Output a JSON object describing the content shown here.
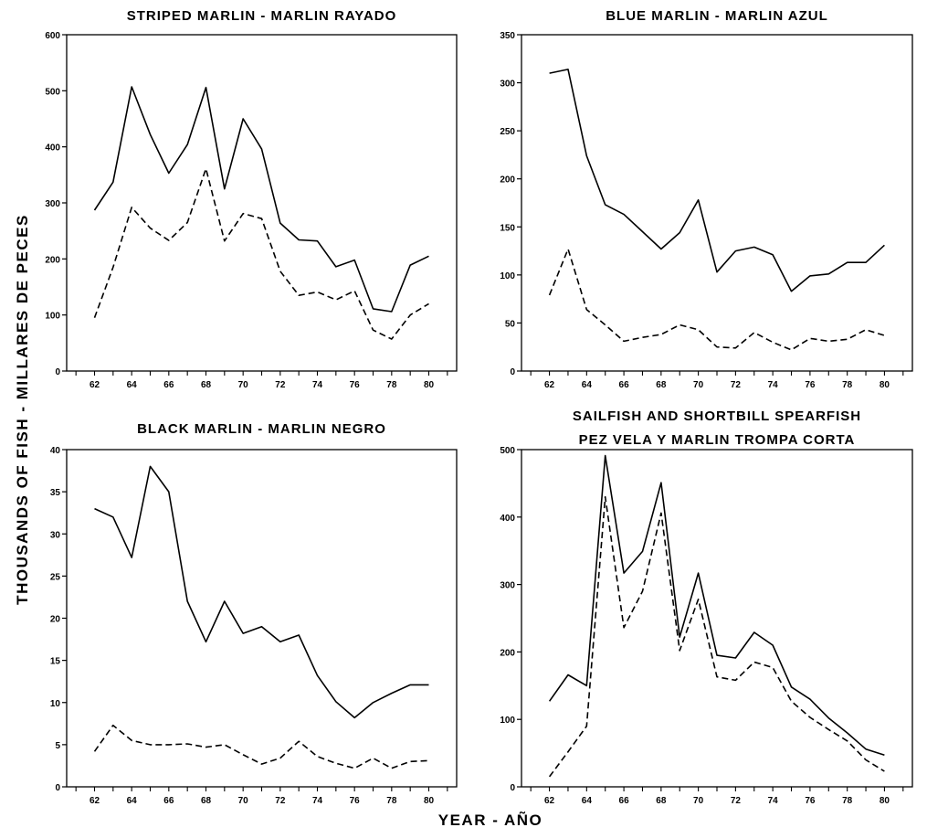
{
  "figure": {
    "ylabel": "THOUSANDS OF FISH - MILLARES DE PECES",
    "xlabel": "YEAR - AÑO"
  },
  "chart_data": [
    {
      "type": "line",
      "title": "STRIPED MARLIN - MARLIN RAYADO",
      "title_lines": [
        "STRIPED MARLIN - MARLIN RAYADO"
      ],
      "xlabel": "YEAR - AÑO",
      "ylabel": "THOUSANDS OF FISH - MILLARES DE PECES",
      "xlim": [
        60.5,
        81.5
      ],
      "ylim": [
        0,
        600
      ],
      "xticks": [
        62,
        64,
        66,
        68,
        70,
        72,
        74,
        76,
        78,
        80
      ],
      "yticks": [
        0,
        100,
        200,
        300,
        400,
        500,
        600
      ],
      "grid": false,
      "x": [
        62,
        63,
        64,
        65,
        66,
        67,
        68,
        69,
        70,
        71,
        72,
        73,
        74,
        75,
        76,
        77,
        78,
        79,
        80
      ],
      "series": [
        {
          "style": "solid",
          "values": [
            287,
            337,
            507,
            422,
            353,
            404,
            506,
            325,
            450,
            396,
            264,
            234,
            232,
            186,
            198,
            111,
            106,
            189,
            205
          ]
        },
        {
          "style": "dashed",
          "values": [
            95,
            185,
            292,
            255,
            233,
            265,
            361,
            232,
            281,
            272,
            178,
            135,
            141,
            127,
            143,
            73,
            57,
            100,
            120
          ]
        }
      ]
    },
    {
      "type": "line",
      "title": "BLUE MARLIN - MARLIN AZUL",
      "title_lines": [
        "BLUE MARLIN - MARLIN AZUL"
      ],
      "xlim": [
        60.5,
        81.5
      ],
      "ylim": [
        0,
        350
      ],
      "xticks": [
        62,
        64,
        66,
        68,
        70,
        72,
        74,
        76,
        78,
        80
      ],
      "yticks": [
        0,
        50,
        100,
        150,
        200,
        250,
        300,
        350
      ],
      "grid": false,
      "x": [
        62,
        63,
        64,
        65,
        66,
        67,
        68,
        69,
        70,
        71,
        72,
        73,
        74,
        75,
        76,
        77,
        78,
        79,
        80
      ],
      "series": [
        {
          "style": "solid",
          "values": [
            310,
            314,
            224,
            173,
            163,
            145,
            127,
            144,
            178,
            103,
            125,
            129,
            121,
            83,
            99,
            101,
            113,
            113,
            131
          ]
        },
        {
          "style": "dashed",
          "values": [
            79,
            127,
            64,
            48,
            31,
            35,
            38,
            48,
            43,
            25,
            24,
            40,
            30,
            22,
            34,
            31,
            33,
            43,
            37
          ]
        }
      ]
    },
    {
      "type": "line",
      "title": "BLACK MARLIN - MARLIN NEGRO",
      "title_lines": [
        "BLACK MARLIN - MARLIN NEGRO"
      ],
      "xlim": [
        60.5,
        81.5
      ],
      "ylim": [
        0,
        40
      ],
      "xticks": [
        62,
        64,
        66,
        68,
        70,
        72,
        74,
        76,
        78,
        80
      ],
      "yticks": [
        0,
        5,
        10,
        15,
        20,
        25,
        30,
        35,
        40
      ],
      "grid": false,
      "x": [
        62,
        63,
        64,
        65,
        66,
        67,
        68,
        69,
        70,
        71,
        72,
        73,
        74,
        75,
        76,
        77,
        78,
        79,
        80
      ],
      "series": [
        {
          "style": "solid",
          "values": [
            33,
            32,
            27.2,
            38,
            35,
            22,
            17.2,
            22,
            18.2,
            19,
            17.2,
            18,
            13.2,
            10.1,
            8.2,
            10,
            11.1,
            12.1,
            12.1
          ]
        },
        {
          "style": "dashed",
          "values": [
            4.2,
            7.3,
            5.5,
            5,
            5,
            5.1,
            4.7,
            5,
            3.8,
            2.7,
            3.4,
            5.4,
            3.6,
            2.8,
            2.2,
            3.4,
            2.2,
            3,
            3.1
          ]
        }
      ]
    },
    {
      "type": "line",
      "title": "SAILFISH AND SHORTBILL SPEARFISH PEZ VELA Y MARLIN TROMPA CORTA",
      "title_lines": [
        "SAILFISH AND SHORTBILL SPEARFISH",
        "PEZ VELA Y MARLIN TROMPA CORTA"
      ],
      "xlim": [
        60.5,
        81.5
      ],
      "ylim": [
        0,
        500
      ],
      "xticks": [
        62,
        64,
        66,
        68,
        70,
        72,
        74,
        76,
        78,
        80
      ],
      "yticks": [
        0,
        100,
        200,
        300,
        400,
        500
      ],
      "grid": false,
      "x": [
        62,
        63,
        64,
        65,
        66,
        67,
        68,
        69,
        70,
        71,
        72,
        73,
        74,
        75,
        76,
        77,
        78,
        79,
        80
      ],
      "series": [
        {
          "style": "solid",
          "values": [
            127,
            166,
            150,
            491,
            317,
            349,
            451,
            222,
            317,
            195,
            191,
            229,
            210,
            148,
            130,
            102,
            80,
            56,
            47
          ]
        },
        {
          "style": "dashed",
          "values": [
            15,
            52,
            90,
            430,
            236,
            290,
            406,
            202,
            278,
            163,
            158,
            185,
            177,
            127,
            103,
            85,
            68,
            40,
            23
          ]
        }
      ]
    }
  ]
}
